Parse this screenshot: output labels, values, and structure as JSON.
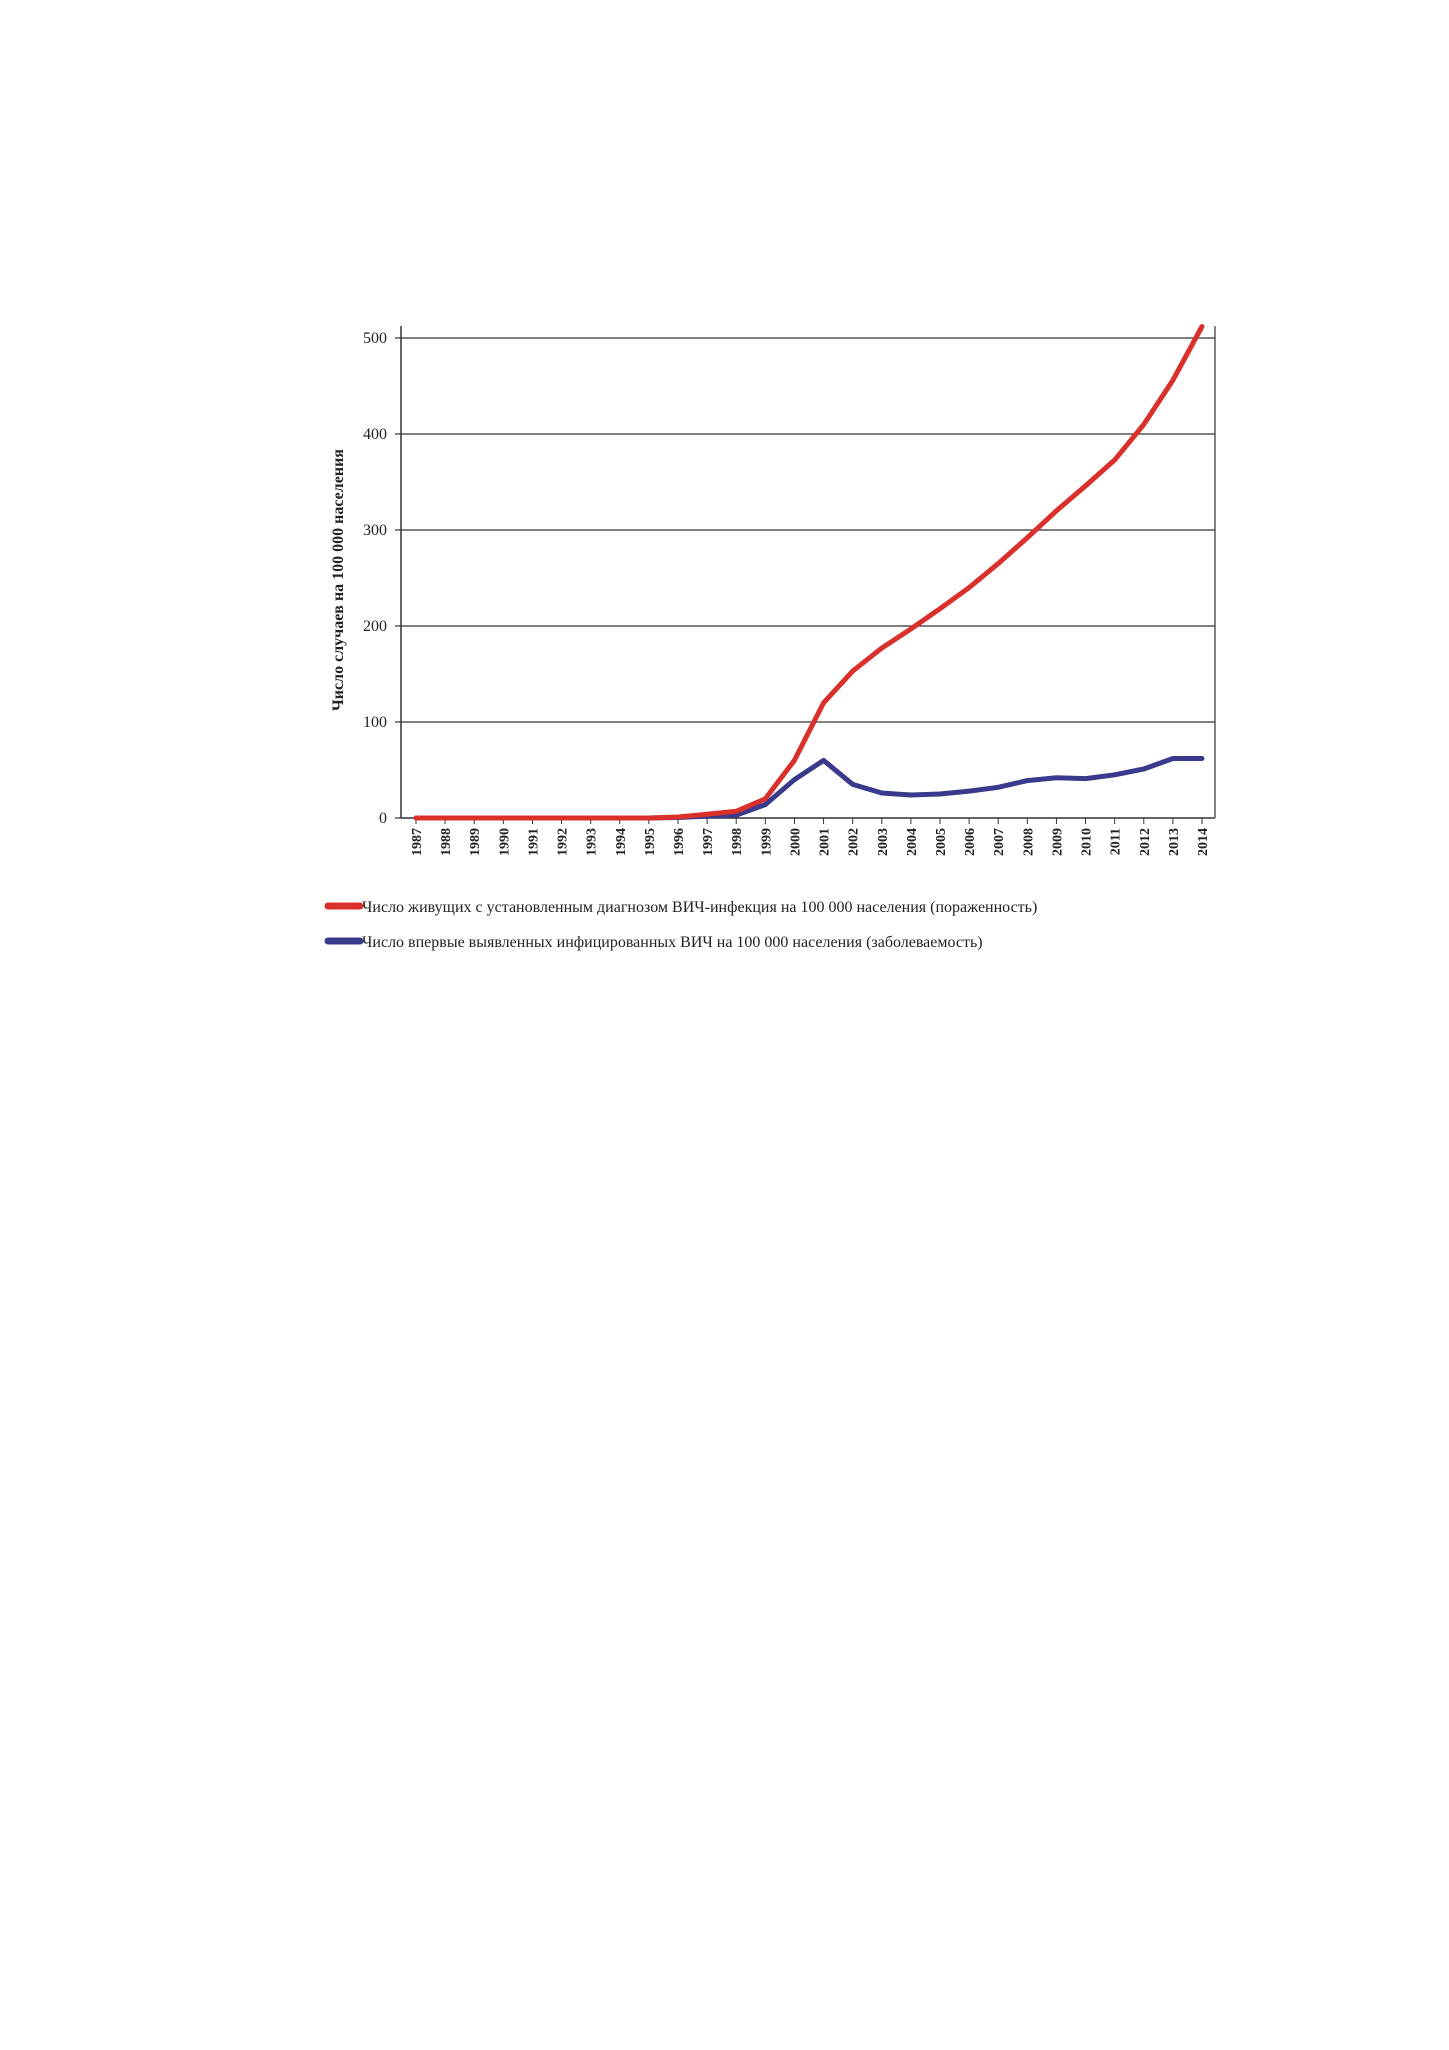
{
  "chart_data": {
    "type": "line",
    "title": "",
    "xlabel": "",
    "ylabel": "Число случаев на 100 000 населения",
    "x": [
      "1987",
      "1988",
      "1989",
      "1990",
      "1991",
      "1992",
      "1993",
      "1994",
      "1995",
      "1996",
      "1997",
      "1998",
      "1999",
      "2000",
      "2001",
      "2002",
      "2003",
      "2004",
      "2005",
      "2006",
      "2007",
      "2008",
      "2009",
      "2010",
      "2011",
      "2012",
      "2013",
      "2014"
    ],
    "ylim": [
      0,
      500
    ],
    "yticks": [
      0,
      100,
      200,
      300,
      400,
      500
    ],
    "grid": true,
    "legend_position": "bottom",
    "series": [
      {
        "name": "Число живущих с установленным диагнозом ВИЧ-инфекция на 100 000 населения (пораженность)",
        "color": "#d9302c",
        "values": [
          0,
          0,
          0,
          0,
          0,
          0,
          0,
          0,
          0,
          1,
          4,
          7,
          20,
          60,
          120,
          153,
          177,
          197,
          218,
          240,
          265,
          292,
          320,
          346,
          373,
          410,
          456,
          512
        ]
      },
      {
        "name": "Число впервые выявленных инфицированных ВИЧ на 100 000 населения (заболеваемость)",
        "color": "#3a3a8c",
        "values": [
          0,
          0,
          0,
          0,
          0,
          0,
          0,
          0,
          0,
          0.5,
          2,
          3,
          14,
          40,
          60,
          35,
          26,
          24,
          25,
          28,
          32,
          39,
          42,
          41,
          45,
          51,
          62,
          62
        ]
      }
    ]
  }
}
